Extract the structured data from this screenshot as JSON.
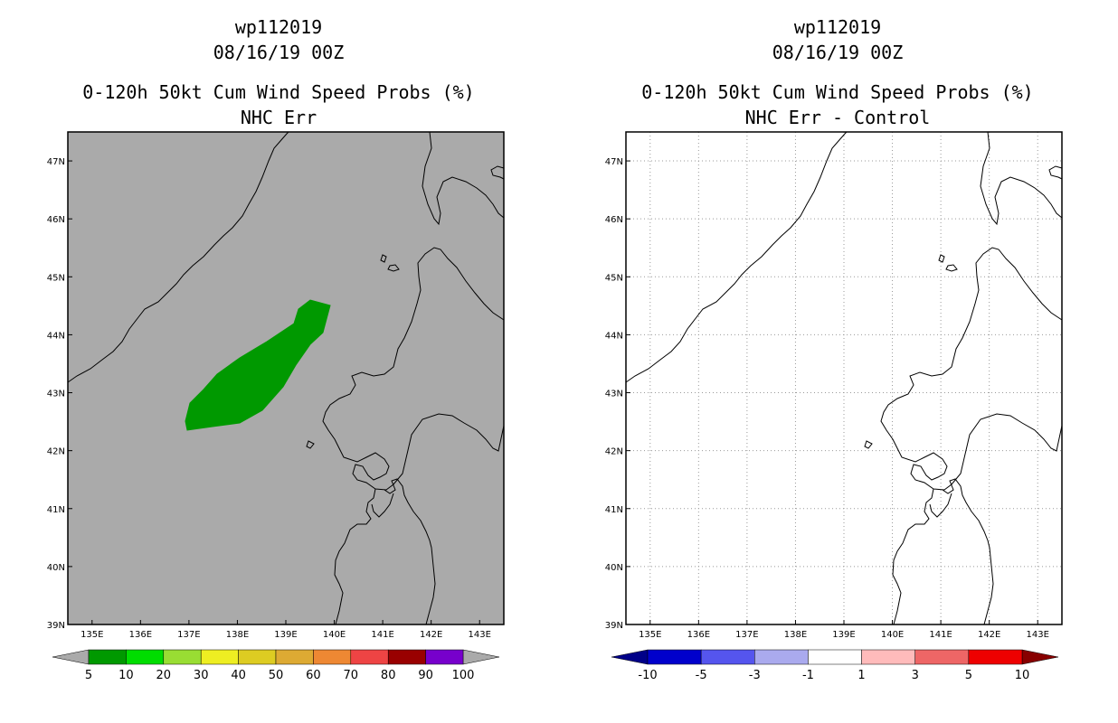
{
  "panels": [
    {
      "title_line1": "wp112019",
      "title_line2": "08/16/19 00Z",
      "title_line3": "0-120h 50kt Cum Wind Speed Probs (%)",
      "title_line4": "NHC Err",
      "background": "#aaaaaa",
      "grid": false,
      "colorbar_labels": [
        "5",
        "10",
        "20",
        "30",
        "40",
        "50",
        "60",
        "70",
        "80",
        "90",
        "100"
      ],
      "colorbar_colors": [
        "#009900",
        "#00dd00",
        "#99dd33",
        "#eeee22",
        "#ddcc22",
        "#ddaa33",
        "#ee8833",
        "#ee4444",
        "#990000",
        "#7700cc"
      ],
      "colorbar_ends": [
        "#aaaaaa",
        "#aaaaaa"
      ],
      "fill_color": "#009900"
    },
    {
      "title_line1": "wp112019",
      "title_line2": "08/16/19 00Z",
      "title_line3": "0-120h 50kt Cum Wind Speed Probs (%)",
      "title_line4": "NHC Err - Control",
      "background": "#ffffff",
      "grid": true,
      "colorbar_labels": [
        "-10",
        "-5",
        "-3",
        "-1",
        "1",
        "3",
        "5",
        "10"
      ],
      "colorbar_colors": [
        "#0000cc",
        "#5555ee",
        "#aaaaee",
        "#ffffff",
        "#ffbbbb",
        "#ee6666",
        "#ee0000"
      ],
      "colorbar_ends": [
        "#000088",
        "#880000"
      ]
    }
  ],
  "lon_labels": [
    "135E",
    "136E",
    "137E",
    "138E",
    "139E",
    "140E",
    "141E",
    "142E",
    "143E"
  ],
  "lat_labels": [
    "47N",
    "46N",
    "45N",
    "44N",
    "43N",
    "42N",
    "41N",
    "40N",
    "39N"
  ],
  "map_region": {
    "lon_range": [
      134.5,
      143.5
    ],
    "lat_range": [
      39,
      47.5
    ]
  }
}
